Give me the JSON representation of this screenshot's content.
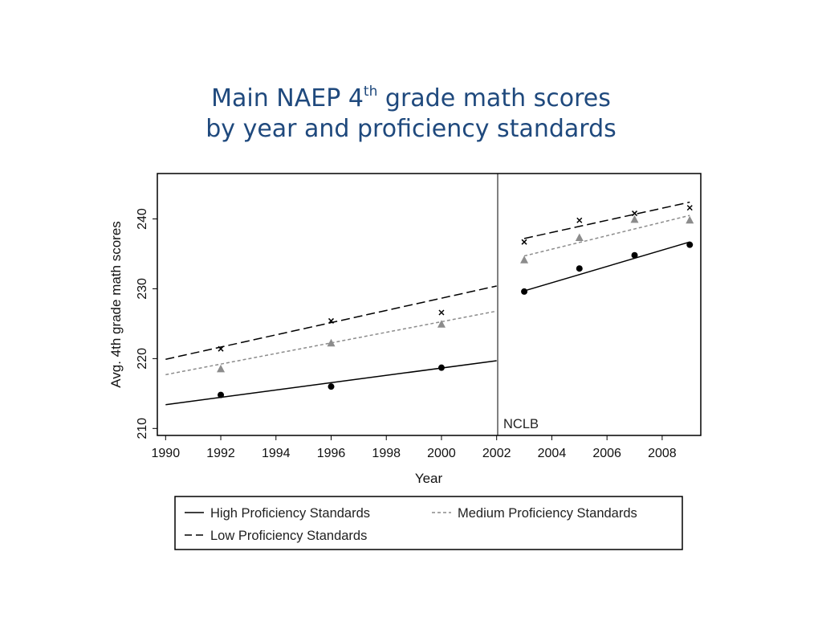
{
  "title": {
    "line1_before": "Main NAEP 4",
    "line1_sup": "th",
    "line1_after": " grade math scores",
    "line2": "by year and proficiency standards"
  },
  "chart_data": {
    "type": "scatter",
    "xlabel": "Year",
    "ylabel": "Avg. 4th grade math scores",
    "xlim": [
      1989.7,
      2009.4
    ],
    "ylim": [
      209,
      246.5
    ],
    "xticks": [
      1990,
      1992,
      1994,
      1996,
      1998,
      2000,
      2002,
      2004,
      2006,
      2008
    ],
    "yticks": [
      210,
      220,
      230,
      240
    ],
    "grid": false,
    "legend_position": "bottom",
    "annotation": {
      "text": "NCLB",
      "x": 2002
    },
    "series": [
      {
        "name": "High Proficiency Standards",
        "line_style": "solid",
        "marker": "circle",
        "color": "#000000",
        "points": [
          [
            1992,
            214.8
          ],
          [
            1996,
            216.0
          ],
          [
            2000,
            218.7
          ],
          [
            2003,
            229.6
          ],
          [
            2005,
            232.9
          ],
          [
            2007,
            234.8
          ],
          [
            2009,
            236.3
          ]
        ],
        "fit_segments": [
          {
            "x": [
              1990,
              2002
            ],
            "y": [
              213.4,
              219.7
            ]
          },
          {
            "x": [
              2003,
              2009
            ],
            "y": [
              229.7,
              236.7
            ]
          }
        ]
      },
      {
        "name": "Medium Proficiency Standards",
        "line_style": "dotted",
        "marker": "triangle",
        "color": "#8c8c8c",
        "points": [
          [
            1992,
            218.5
          ],
          [
            1996,
            222.2
          ],
          [
            2000,
            224.9
          ],
          [
            2003,
            234.1
          ],
          [
            2005,
            237.3
          ],
          [
            2007,
            239.9
          ],
          [
            2009,
            239.8
          ]
        ],
        "fit_segments": [
          {
            "x": [
              1990,
              2002
            ],
            "y": [
              217.7,
              226.8
            ]
          },
          {
            "x": [
              2003,
              2009
            ],
            "y": [
              234.7,
              240.5
            ]
          }
        ]
      },
      {
        "name": "Low Proficiency Standards",
        "line_style": "dashed",
        "marker": "x",
        "color": "#000000",
        "points": [
          [
            1992,
            221.4
          ],
          [
            1996,
            225.4
          ],
          [
            2000,
            226.6
          ],
          [
            2003,
            236.7
          ],
          [
            2005,
            239.8
          ],
          [
            2007,
            240.8
          ],
          [
            2009,
            241.6
          ]
        ],
        "fit_segments": [
          {
            "x": [
              1990,
              2002
            ],
            "y": [
              219.9,
              230.4
            ]
          },
          {
            "x": [
              2003,
              2009
            ],
            "y": [
              237.2,
              242.4
            ]
          }
        ]
      }
    ],
    "legend_order": [
      "High Proficiency Standards",
      "Medium Proficiency Standards",
      "Low Proficiency Standards"
    ]
  }
}
